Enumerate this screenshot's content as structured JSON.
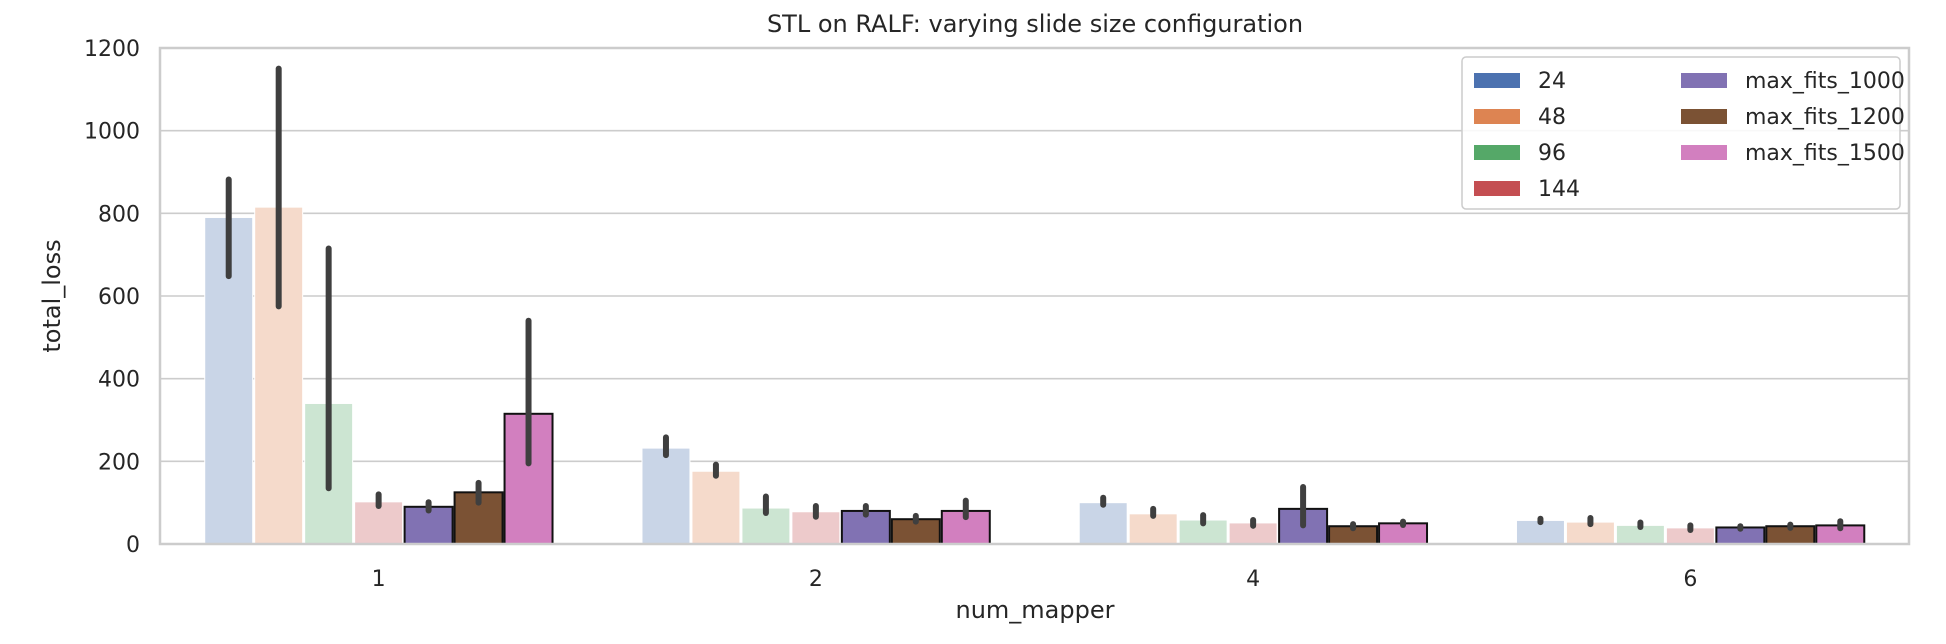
{
  "chart_data": {
    "type": "bar",
    "title": "STL on RALF: varying slide size configuration",
    "xlabel": "num_mapper",
    "ylabel": "total_loss",
    "ylim": [
      0,
      1200
    ],
    "yticks": [
      0,
      200,
      400,
      600,
      800,
      1000,
      1200
    ],
    "grid": true,
    "legend_position": "top-right",
    "categories": [
      "1",
      "2",
      "4",
      "6"
    ],
    "series": [
      {
        "name": "24",
        "color": "#4C72B0",
        "faded": true,
        "values": [
          790,
          232,
          100,
          57
        ],
        "err_low": [
          648,
          215,
          95,
          53
        ],
        "err_high": [
          882,
          258,
          112,
          61
        ]
      },
      {
        "name": "48",
        "color": "#DD8452",
        "faded": true,
        "values": [
          815,
          176,
          73,
          53
        ],
        "err_low": [
          575,
          165,
          68,
          48
        ],
        "err_high": [
          1150,
          192,
          85,
          63
        ]
      },
      {
        "name": "96",
        "color": "#55A868",
        "faded": true,
        "values": [
          340,
          87,
          58,
          45
        ],
        "err_low": [
          135,
          75,
          50,
          41
        ],
        "err_high": [
          715,
          115,
          70,
          52
        ]
      },
      {
        "name": "144",
        "color": "#C44E52",
        "faded": true,
        "values": [
          102,
          78,
          51,
          39
        ],
        "err_low": [
          92,
          66,
          44,
          34
        ],
        "err_high": [
          120,
          92,
          58,
          45
        ]
      },
      {
        "name": "max_fits_1000",
        "color": "#8172B3",
        "faded": false,
        "values": [
          90,
          80,
          85,
          40
        ],
        "err_low": [
          81,
          71,
          45,
          37
        ],
        "err_high": [
          101,
          92,
          138,
          43
        ]
      },
      {
        "name": "max_fits_1200",
        "color": "#7B5234",
        "faded": false,
        "values": [
          125,
          60,
          43,
          43
        ],
        "err_low": [
          100,
          54,
          38,
          39
        ],
        "err_high": [
          148,
          68,
          48,
          47
        ]
      },
      {
        "name": "max_fits_1500",
        "color": "#D27FBF",
        "faded": false,
        "values": [
          315,
          80,
          50,
          45
        ],
        "err_low": [
          195,
          65,
          46,
          38
        ],
        "err_high": [
          540,
          105,
          54,
          55
        ]
      }
    ]
  }
}
